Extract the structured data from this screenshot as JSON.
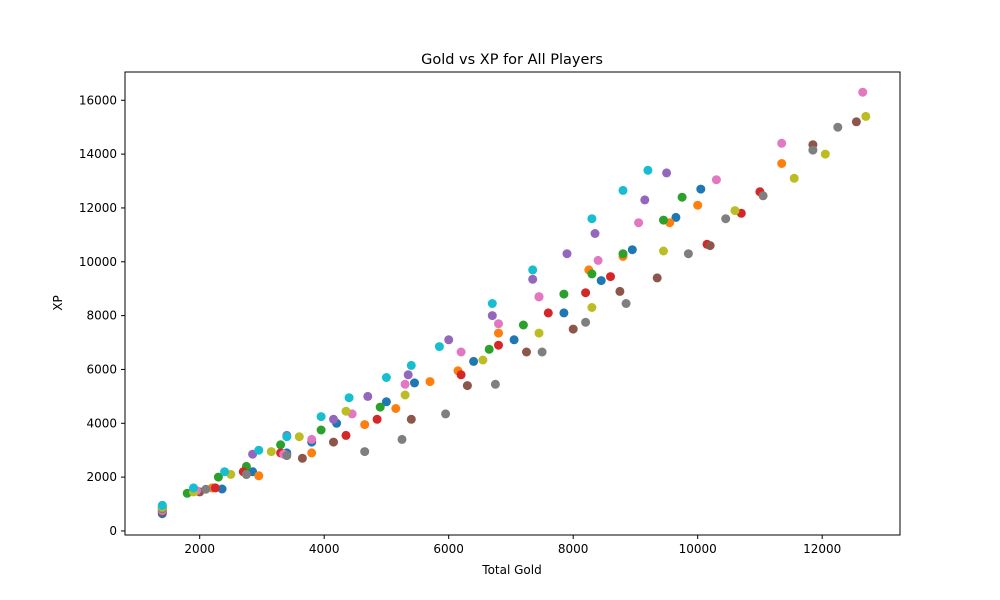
{
  "chart_data": {
    "type": "scatter",
    "title": "Gold vs XP for All Players",
    "xlabel": "Total Gold",
    "ylabel": "XP",
    "xlim": [
      800,
      13250
    ],
    "ylim": [
      -150,
      17050
    ],
    "xticks": [
      2000,
      4000,
      6000,
      8000,
      10000,
      12000
    ],
    "yticks": [
      0,
      2000,
      4000,
      6000,
      8000,
      10000,
      12000,
      14000,
      16000
    ],
    "grid": false,
    "legend": "none",
    "palette": [
      "#1f77b4",
      "#ff7f0e",
      "#2ca02c",
      "#d62728",
      "#9467bd",
      "#8c564b",
      "#e377c2",
      "#7f7f7f",
      "#bcbd22",
      "#17becf"
    ],
    "series": [
      {
        "color": "#1f77b4",
        "points": [
          [
            1400,
            640
          ],
          [
            1400,
            700
          ],
          [
            1900,
            1500
          ],
          [
            2360,
            1560
          ],
          [
            2850,
            2200
          ],
          [
            3400,
            2900
          ],
          [
            3800,
            3300
          ],
          [
            4200,
            4000
          ],
          [
            5000,
            4800
          ],
          [
            5450,
            5500
          ],
          [
            6400,
            6300
          ],
          [
            7050,
            7100
          ],
          [
            7850,
            8100
          ],
          [
            8450,
            9300
          ],
          [
            8950,
            10450
          ],
          [
            9650,
            11650
          ],
          [
            10050,
            12700
          ]
        ]
      },
      {
        "color": "#ff7f0e",
        "points": [
          [
            1400,
            760
          ],
          [
            2200,
            1600
          ],
          [
            2950,
            2050
          ],
          [
            3800,
            2900
          ],
          [
            4650,
            3950
          ],
          [
            5150,
            4550
          ],
          [
            5700,
            5550
          ],
          [
            6150,
            5950
          ],
          [
            6800,
            7350
          ],
          [
            8250,
            9700
          ],
          [
            8800,
            10200
          ],
          [
            9550,
            11450
          ],
          [
            10000,
            12100
          ],
          [
            11350,
            13650
          ]
        ]
      },
      {
        "color": "#2ca02c",
        "points": [
          [
            1400,
            820
          ],
          [
            1800,
            1400
          ],
          [
            2300,
            2000
          ],
          [
            2750,
            2400
          ],
          [
            3300,
            3200
          ],
          [
            3950,
            3750
          ],
          [
            4900,
            4600
          ],
          [
            6650,
            6750
          ],
          [
            7200,
            7650
          ],
          [
            7850,
            8800
          ],
          [
            8300,
            9550
          ],
          [
            8800,
            10300
          ],
          [
            9450,
            11550
          ],
          [
            9750,
            12400
          ]
        ]
      },
      {
        "color": "#d62728",
        "points": [
          [
            1400,
            880
          ],
          [
            2250,
            1600
          ],
          [
            2700,
            2200
          ],
          [
            3300,
            2900
          ],
          [
            4350,
            3550
          ],
          [
            4850,
            4150
          ],
          [
            6200,
            5800
          ],
          [
            6800,
            6900
          ],
          [
            7600,
            8100
          ],
          [
            8200,
            8850
          ],
          [
            8600,
            9450
          ],
          [
            10150,
            10650
          ],
          [
            10700,
            11800
          ],
          [
            11000,
            12600
          ]
        ]
      },
      {
        "color": "#9467bd",
        "points": [
          [
            1400,
            950
          ],
          [
            2850,
            2850
          ],
          [
            3400,
            3550
          ],
          [
            4150,
            4150
          ],
          [
            4700,
            5000
          ],
          [
            5350,
            5800
          ],
          [
            6000,
            7100
          ],
          [
            6700,
            8000
          ],
          [
            7350,
            9350
          ],
          [
            7450,
            8700
          ],
          [
            7900,
            10300
          ],
          [
            8350,
            11050
          ],
          [
            9150,
            12300
          ],
          [
            9500,
            13300
          ]
        ]
      },
      {
        "color": "#8c564b",
        "points": [
          [
            1400,
            700
          ],
          [
            2000,
            1450
          ],
          [
            2750,
            2100
          ],
          [
            3650,
            2700
          ],
          [
            4150,
            3300
          ],
          [
            5400,
            4150
          ],
          [
            6300,
            5400
          ],
          [
            7250,
            6650
          ],
          [
            8000,
            7500
          ],
          [
            8750,
            8900
          ],
          [
            9350,
            9400
          ],
          [
            10200,
            10600
          ],
          [
            11850,
            14350
          ],
          [
            12550,
            15200
          ]
        ]
      },
      {
        "color": "#e377c2",
        "points": [
          [
            1400,
            760
          ],
          [
            1950,
            1500
          ],
          [
            3350,
            2850
          ],
          [
            3800,
            3400
          ],
          [
            4450,
            4350
          ],
          [
            5300,
            5450
          ],
          [
            6200,
            6650
          ],
          [
            6800,
            7700
          ],
          [
            7450,
            8700
          ],
          [
            8400,
            10050
          ],
          [
            9050,
            11450
          ],
          [
            10300,
            13050
          ],
          [
            11350,
            14400
          ],
          [
            12650,
            16300
          ]
        ]
      },
      {
        "color": "#7f7f7f",
        "points": [
          [
            1400,
            820
          ],
          [
            2100,
            1550
          ],
          [
            2750,
            2100
          ],
          [
            3400,
            2800
          ],
          [
            4650,
            2950
          ],
          [
            5250,
            3400
          ],
          [
            5950,
            4350
          ],
          [
            6750,
            5450
          ],
          [
            7500,
            6650
          ],
          [
            8200,
            7750
          ],
          [
            8850,
            8450
          ],
          [
            9850,
            10300
          ],
          [
            10450,
            11600
          ],
          [
            11050,
            12450
          ],
          [
            11850,
            14150
          ],
          [
            12250,
            15000
          ]
        ]
      },
      {
        "color": "#bcbd22",
        "points": [
          [
            1400,
            880
          ],
          [
            1900,
            1450
          ],
          [
            2500,
            2100
          ],
          [
            3150,
            2950
          ],
          [
            3600,
            3500
          ],
          [
            4350,
            4450
          ],
          [
            5300,
            5050
          ],
          [
            6550,
            6350
          ],
          [
            7450,
            7350
          ],
          [
            8300,
            8300
          ],
          [
            9450,
            10400
          ],
          [
            10600,
            11900
          ],
          [
            11550,
            13100
          ],
          [
            12050,
            14000
          ],
          [
            12700,
            15400
          ]
        ]
      },
      {
        "color": "#17becf",
        "points": [
          [
            1400,
            950
          ],
          [
            1900,
            1600
          ],
          [
            2400,
            2200
          ],
          [
            2950,
            3000
          ],
          [
            3400,
            3500
          ],
          [
            3950,
            4250
          ],
          [
            4400,
            4950
          ],
          [
            5000,
            5700
          ],
          [
            5400,
            6150
          ],
          [
            5850,
            6850
          ],
          [
            6700,
            8450
          ],
          [
            7350,
            9700
          ],
          [
            8300,
            11600
          ],
          [
            8800,
            12650
          ],
          [
            9200,
            13400
          ]
        ]
      }
    ]
  }
}
